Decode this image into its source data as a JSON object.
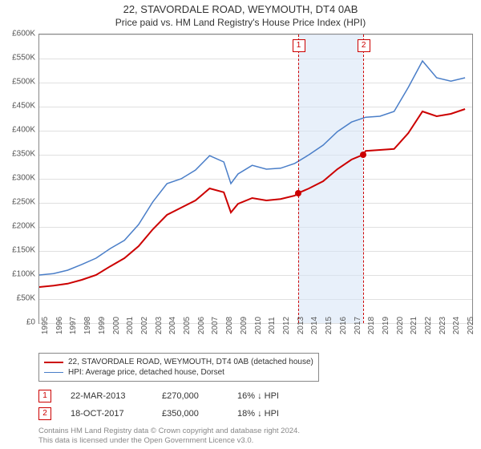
{
  "title": "22, STAVORDALE ROAD, WEYMOUTH, DT4 0AB",
  "subtitle": "Price paid vs. HM Land Registry's House Price Index (HPI)",
  "chart": {
    "type": "line",
    "background_color": "#ffffff",
    "grid_color": "#e0e0e0",
    "border_color": "#888888",
    "xlim": [
      1995,
      2025.5
    ],
    "ylim": [
      0,
      600000
    ],
    "ytick_step": 50000,
    "ytick_labels": [
      "£0",
      "£50K",
      "£100K",
      "£150K",
      "£200K",
      "£250K",
      "£300K",
      "£350K",
      "£400K",
      "£450K",
      "£500K",
      "£550K",
      "£600K"
    ],
    "xtick_step": 1,
    "xtick_labels": [
      "1995",
      "1996",
      "1997",
      "1998",
      "1999",
      "2000",
      "2001",
      "2002",
      "2003",
      "2004",
      "2005",
      "2006",
      "2007",
      "2008",
      "2009",
      "2010",
      "2011",
      "2012",
      "2013",
      "2014",
      "2015",
      "2016",
      "2017",
      "2018",
      "2019",
      "2020",
      "2021",
      "2022",
      "2023",
      "2024",
      "2025"
    ],
    "shaded_region": {
      "from": 2013.22,
      "to": 2017.8,
      "color": "#d6e4f5"
    },
    "series": [
      {
        "name": "22, STAVORDALE ROAD, WEYMOUTH, DT4 0AB (detached house)",
        "color": "#cc0000",
        "line_width": 2,
        "x": [
          1995,
          1996,
          1997,
          1998,
          1999,
          2000,
          2001,
          2002,
          2003,
          2004,
          2005,
          2006,
          2007,
          2008,
          2008.5,
          2009,
          2010,
          2011,
          2012,
          2013,
          2013.22,
          2014,
          2015,
          2016,
          2017,
          2017.8,
          2018,
          2019,
          2020,
          2021,
          2022,
          2023,
          2024,
          2025
        ],
        "y": [
          75000,
          78000,
          82000,
          90000,
          100000,
          118000,
          135000,
          160000,
          195000,
          225000,
          240000,
          255000,
          280000,
          272000,
          230000,
          248000,
          260000,
          255000,
          258000,
          265000,
          270000,
          280000,
          295000,
          320000,
          340000,
          350000,
          358000,
          360000,
          362000,
          395000,
          440000,
          430000,
          435000,
          445000
        ]
      },
      {
        "name": "HPI: Average price, detached house, Dorset",
        "color": "#4a7ec8",
        "line_width": 1.5,
        "x": [
          1995,
          1996,
          1997,
          1998,
          1999,
          2000,
          2001,
          2002,
          2003,
          2004,
          2005,
          2006,
          2007,
          2008,
          2008.5,
          2009,
          2010,
          2011,
          2012,
          2013,
          2014,
          2015,
          2016,
          2017,
          2018,
          2019,
          2020,
          2021,
          2022,
          2023,
          2024,
          2025
        ],
        "y": [
          100000,
          103000,
          110000,
          122000,
          135000,
          155000,
          172000,
          205000,
          252000,
          290000,
          300000,
          318000,
          348000,
          335000,
          290000,
          310000,
          328000,
          320000,
          322000,
          332000,
          350000,
          370000,
          398000,
          418000,
          428000,
          430000,
          440000,
          490000,
          545000,
          510000,
          503000,
          510000
        ]
      }
    ],
    "markers": [
      {
        "id": "1",
        "x": 2013.22,
        "y": 270000,
        "dash_color": "#cc0000"
      },
      {
        "id": "2",
        "x": 2017.8,
        "y": 350000,
        "dash_color": "#cc0000"
      }
    ]
  },
  "legend": {
    "items": [
      {
        "color": "#cc0000",
        "width": 2,
        "label": "22, STAVORDALE ROAD, WEYMOUTH, DT4 0AB (detached house)"
      },
      {
        "color": "#4a7ec8",
        "width": 1.5,
        "label": "HPI: Average price, detached house, Dorset"
      }
    ]
  },
  "sales": [
    {
      "id": "1",
      "date": "22-MAR-2013",
      "price": "£270,000",
      "diff": "16% ↓ HPI"
    },
    {
      "id": "2",
      "date": "18-OCT-2017",
      "price": "£350,000",
      "diff": "18% ↓ HPI"
    }
  ],
  "footer_line1": "Contains HM Land Registry data © Crown copyright and database right 2024.",
  "footer_line2": "This data is licensed under the Open Government Licence v3.0."
}
